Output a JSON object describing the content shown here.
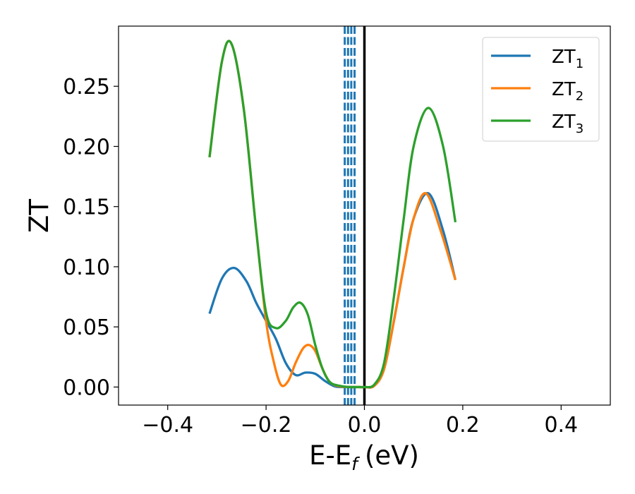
{
  "chart_data": {
    "type": "line",
    "xlabel": "E-E",
    "xlabel_sub": "f",
    "xlabel_unit": "(eV)",
    "ylabel": "ZT",
    "xlim": [
      -0.5,
      0.5
    ],
    "ylim": [
      -0.015,
      0.3
    ],
    "x_ticks": [
      -0.4,
      -0.2,
      0.0,
      0.2,
      0.4
    ],
    "x_tick_labels": [
      "−0.4",
      "−0.2",
      "0.0",
      "0.2",
      "0.4"
    ],
    "y_ticks": [
      0.0,
      0.05,
      0.1,
      0.15,
      0.2,
      0.25
    ],
    "y_tick_labels": [
      "0.00",
      "0.05",
      "0.10",
      "0.15",
      "0.20",
      "0.25"
    ],
    "grid": false,
    "legend_position": "top-right",
    "vertical_lines": [
      {
        "x": 0.0,
        "style": "solid",
        "color": "#000000"
      },
      {
        "x": -0.04,
        "style": "dashed",
        "color": "#1f77b4"
      },
      {
        "x": -0.0333,
        "style": "dashed",
        "color": "#1f77b4"
      },
      {
        "x": -0.0267,
        "style": "dashed",
        "color": "#1f77b4"
      },
      {
        "x": -0.02,
        "style": "dashed",
        "color": "#1f77b4"
      }
    ],
    "series": [
      {
        "name": "ZT",
        "name_sub": "1",
        "color": "#1f77b4",
        "x": [
          -0.315,
          -0.29,
          -0.265,
          -0.24,
          -0.22,
          -0.2,
          -0.18,
          -0.16,
          -0.14,
          -0.12,
          -0.1,
          -0.08,
          -0.06,
          -0.04,
          -0.02,
          0.0,
          0.02,
          0.04,
          0.06,
          0.08,
          0.1,
          0.13,
          0.16,
          0.185
        ],
        "y": [
          0.061,
          0.09,
          0.099,
          0.088,
          0.07,
          0.055,
          0.04,
          0.02,
          0.01,
          0.012,
          0.011,
          0.005,
          0.0005,
          0.0,
          0.0,
          0.0,
          0.001,
          0.015,
          0.055,
          0.1,
          0.14,
          0.161,
          0.13,
          0.089
        ]
      },
      {
        "name": "ZT",
        "name_sub": "2",
        "color": "#ff7f0e",
        "x": [
          -0.315,
          -0.29,
          -0.27,
          -0.245,
          -0.22,
          -0.2,
          -0.185,
          -0.17,
          -0.155,
          -0.14,
          -0.125,
          -0.113,
          -0.1,
          -0.085,
          -0.07,
          -0.05,
          -0.03,
          -0.01,
          0.0,
          0.02,
          0.04,
          0.06,
          0.08,
          0.1,
          0.125,
          0.155,
          0.185
        ],
        "y": [
          0.191,
          0.27,
          0.285,
          0.23,
          0.13,
          0.055,
          0.022,
          0.002,
          0.005,
          0.02,
          0.032,
          0.035,
          0.03,
          0.015,
          0.004,
          0.0005,
          0.0,
          0.0,
          0.0,
          0.001,
          0.015,
          0.055,
          0.1,
          0.14,
          0.161,
          0.13,
          0.089
        ]
      },
      {
        "name": "ZT",
        "name_sub": "3",
        "color": "#2ca02c",
        "x": [
          -0.315,
          -0.29,
          -0.27,
          -0.245,
          -0.22,
          -0.2,
          -0.18,
          -0.16,
          -0.145,
          -0.13,
          -0.115,
          -0.1,
          -0.085,
          -0.07,
          -0.05,
          -0.03,
          -0.01,
          0.0,
          0.02,
          0.04,
          0.06,
          0.08,
          0.1,
          0.13,
          0.16,
          0.185
        ],
        "y": [
          0.191,
          0.27,
          0.285,
          0.23,
          0.13,
          0.062,
          0.049,
          0.055,
          0.066,
          0.07,
          0.06,
          0.035,
          0.015,
          0.004,
          0.001,
          0.0,
          0.0,
          0.0,
          0.002,
          0.02,
          0.075,
          0.14,
          0.2,
          0.232,
          0.2,
          0.137
        ]
      }
    ]
  }
}
